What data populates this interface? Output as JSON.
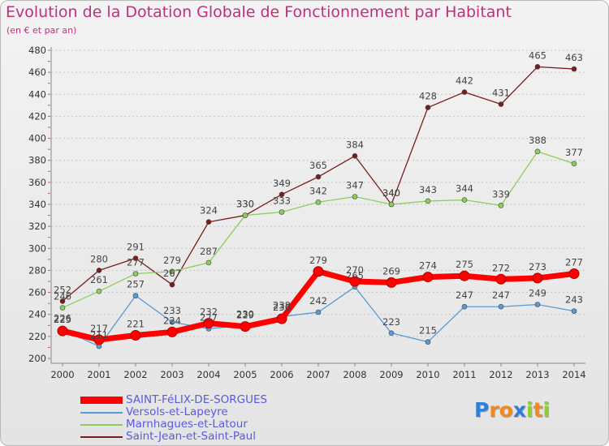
{
  "header": {
    "title": "Evolution de la Dotation Globale de Fonctionnement par Habitant",
    "subtitle": "(en € et par an)"
  },
  "chart_data": {
    "type": "line",
    "x": [
      "2000",
      "2001",
      "2002",
      "2003",
      "2004",
      "2005",
      "2006",
      "2007",
      "2008",
      "2009",
      "2010",
      "2011",
      "2012",
      "2013",
      "2014"
    ],
    "ylim": [
      200,
      480
    ],
    "yticks": [
      200,
      220,
      240,
      260,
      280,
      300,
      320,
      340,
      360,
      380,
      400,
      420,
      440,
      460,
      480
    ],
    "grid": "horizontal dashed",
    "legend": "bottom-left",
    "series": [
      {
        "name": "Saint-Jean-et-Saint-Paul",
        "color": "#7a1c1c",
        "values": [
          252,
          280,
          291,
          267,
          324,
          330,
          349,
          365,
          384,
          340,
          428,
          442,
          431,
          465,
          463
        ]
      },
      {
        "name": "Marnhagues-et-Latour",
        "color": "#8ccf58",
        "values": [
          246,
          261,
          277,
          279,
          287,
          330,
          333,
          342,
          347,
          340,
          343,
          344,
          339,
          388,
          377
        ]
      },
      {
        "name": "Versols-et-Lapeyre",
        "color": "#5a9ad6",
        "values": [
          226,
          211,
          257,
          233,
          227,
          230,
          238,
          242,
          265,
          223,
          215,
          247,
          247,
          249,
          243
        ]
      },
      {
        "name": "SAINT-FéLIX-DE-SORGUES",
        "color": "#ff0000",
        "values": [
          225,
          217,
          221,
          224,
          232,
          229,
          236,
          279,
          270,
          269,
          274,
          275,
          272,
          273,
          277
        ]
      }
    ]
  },
  "logo": {
    "letters": [
      {
        "ch": "P",
        "color": "#2f7fd6"
      },
      {
        "ch": "r",
        "color": "#f08a1c"
      },
      {
        "ch": "o",
        "color": "#f08a1c"
      },
      {
        "ch": "x",
        "color": "#2f7fd6"
      },
      {
        "ch": "i",
        "color": "#8ccf30"
      },
      {
        "ch": "t",
        "color": "#f08a1c"
      },
      {
        "ch": "i",
        "color": "#8ccf30"
      }
    ]
  }
}
